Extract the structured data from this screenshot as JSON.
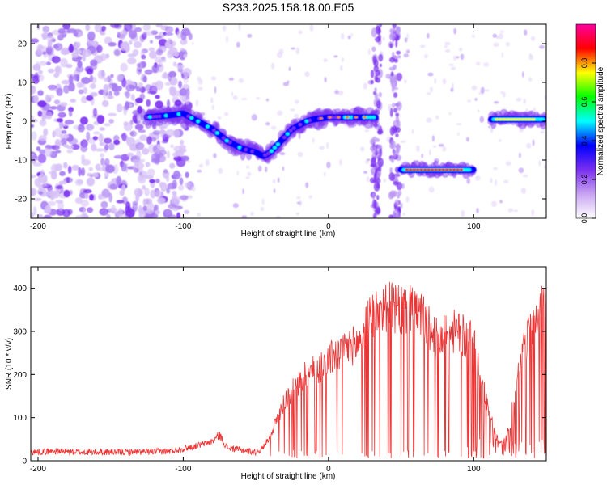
{
  "figure": {
    "title": "S233.2025.158.18.00.E05"
  },
  "chart_data": [
    {
      "type": "heatmap",
      "title": "S233.2025.158.18.00.E05",
      "xlabel": "Height of straight line (km)",
      "ylabel": "Frequency (Hz)",
      "xlim": [
        -205,
        150
      ],
      "ylim": [
        -25,
        25
      ],
      "x_ticks": [
        -200,
        -100,
        0,
        100
      ],
      "y_ticks": [
        -20,
        -10,
        0,
        10,
        20
      ],
      "x_tick_labels": [
        "-200",
        "-100",
        "0",
        "100"
      ],
      "y_tick_labels": [
        "-20",
        "-10",
        "0",
        "10",
        "20"
      ],
      "colorbar": {
        "label": "Normalized spectral amplitude",
        "range": [
          0,
          1
        ],
        "ticks": [
          0.0,
          0.2,
          0.4,
          0.6,
          0.8
        ],
        "tick_labels": [
          "0.0",
          "0.2",
          "0.4",
          "0.6",
          "0.8"
        ],
        "colormap": [
          "#ffffff",
          "#c9a4f2",
          "#7a2ff0",
          "#0000ff",
          "#00ffff",
          "#00ff00",
          "#ffff00",
          "#ff0000",
          "#ff00a0"
        ]
      },
      "ridge": {
        "description_x": [
          -125,
          -110,
          -100,
          -90,
          -80,
          -70,
          -60,
          -50,
          -45,
          -40,
          -35,
          -30,
          -25,
          -20,
          -15,
          -10,
          0,
          10,
          20,
          33
        ],
        "frequency": [
          1,
          1.5,
          2,
          0,
          -2,
          -5,
          -7,
          -8,
          -9,
          -8,
          -6,
          -4,
          -2,
          -1,
          0,
          0.5,
          1,
          1,
          1,
          1
        ]
      },
      "band_segments": [
        {
          "x_start": 50,
          "x_end": 100,
          "frequency": -12.5
        },
        {
          "x_start": 112,
          "x_end": 150,
          "frequency": 0.5
        }
      ],
      "noise_region": {
        "x_start": -205,
        "x_end": -120
      },
      "vertical_stripes_x": [
        33,
        46
      ]
    },
    {
      "type": "line",
      "xlabel": "Height of straight line (km)",
      "ylabel": "SNR (10 * v/v)",
      "xlim": [
        -205,
        150
      ],
      "ylim": [
        0,
        450
      ],
      "x_ticks": [
        -200,
        -100,
        0,
        100
      ],
      "y_ticks": [
        0,
        100,
        200,
        300,
        400
      ],
      "x_tick_labels": [
        "-200",
        "-100",
        "0",
        "100"
      ],
      "y_tick_labels": [
        "0",
        "100",
        "200",
        "300",
        "400"
      ],
      "color": "#ee3333",
      "series": [
        {
          "x": [
            -205,
            -190,
            -170,
            -150,
            -130,
            -110,
            -100,
            -90,
            -80,
            -75,
            -70,
            -60,
            -50,
            -45,
            -40,
            -35,
            -30,
            -25,
            -20,
            -15,
            -10,
            -5,
            0,
            5,
            10,
            15,
            20,
            25,
            30,
            35,
            40,
            45,
            50,
            55,
            60,
            65,
            70,
            75,
            80,
            85,
            90,
            95,
            100,
            105,
            110,
            115,
            120,
            125,
            130,
            135,
            140,
            145,
            150
          ],
          "y": [
            20,
            22,
            20,
            20,
            20,
            22,
            28,
            35,
            45,
            60,
            30,
            25,
            20,
            30,
            60,
            100,
            140,
            160,
            180,
            200,
            210,
            220,
            235,
            245,
            250,
            265,
            270,
            300,
            340,
            355,
            360,
            350,
            345,
            350,
            340,
            335,
            300,
            280,
            290,
            300,
            295,
            285,
            280,
            190,
            120,
            60,
            40,
            80,
            200,
            260,
            320,
            350,
            365
          ]
        }
      ]
    }
  ]
}
